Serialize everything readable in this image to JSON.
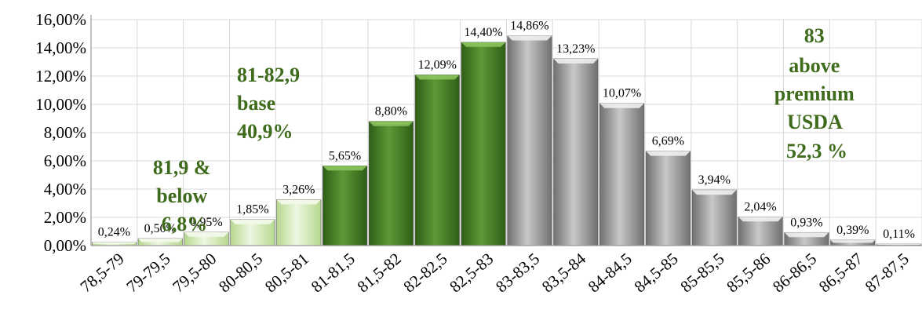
{
  "chart_data": {
    "type": "bar",
    "categories": [
      "78,5-79",
      "79-79,5",
      "79,5-80",
      "80-80,5",
      "80,5-81",
      "81-81,5",
      "81,5-82",
      "82-82,5",
      "82,5-83",
      "83-83,5",
      "83,5-84",
      "84-84,5",
      "84,5-85",
      "85-85,5",
      "85,5-86",
      "86-86,5",
      "86,5-87",
      "87-87,5"
    ],
    "values": [
      0.24,
      0.5,
      0.95,
      1.85,
      3.26,
      5.65,
      8.8,
      12.09,
      14.4,
      14.86,
      13.23,
      10.07,
      6.69,
      3.94,
      2.04,
      0.93,
      0.39,
      0.11
    ],
    "data_labels": [
      "0,24%",
      "0,50%",
      "0,95%",
      "1,85%",
      "3,26%",
      "5,65%",
      "8,80%",
      "12,09%",
      "14,40%",
      "14,86%",
      "13,23%",
      "10,07%",
      "6,69%",
      "3,94%",
      "2,04%",
      "0,93%",
      "0,39%",
      "0,11%"
    ],
    "y_ticks": [
      "0,00%",
      "2,00%",
      "4,00%",
      "6,00%",
      "8,00%",
      "10,00%",
      "12,00%",
      "14,00%",
      "16,00%"
    ],
    "ylim": [
      0,
      16
    ],
    "grid": true,
    "bar_groups": [
      "light-green",
      "light-green",
      "light-green",
      "light-green",
      "light-green",
      "dark-green",
      "dark-green",
      "dark-green",
      "dark-green",
      "gray",
      "gray",
      "gray",
      "gray",
      "gray",
      "gray",
      "gray",
      "gray",
      "gray"
    ],
    "colors": {
      "light_green": "#d9ecc0",
      "dark_green": "#4e8a2e",
      "gray": "#a8a8a8",
      "annotation": "#3f6b1c",
      "axis": "#9a9a9a"
    },
    "annotations": [
      {
        "id": "below",
        "lines": [
          "81,9  &",
          "below",
          "6,8%"
        ]
      },
      {
        "id": "base",
        "lines": [
          "81-82,9",
          "base",
          "40,9%"
        ]
      },
      {
        "id": "above",
        "lines": [
          "83",
          "above",
          "premium",
          "USDA",
          "52,3 %"
        ]
      }
    ]
  }
}
